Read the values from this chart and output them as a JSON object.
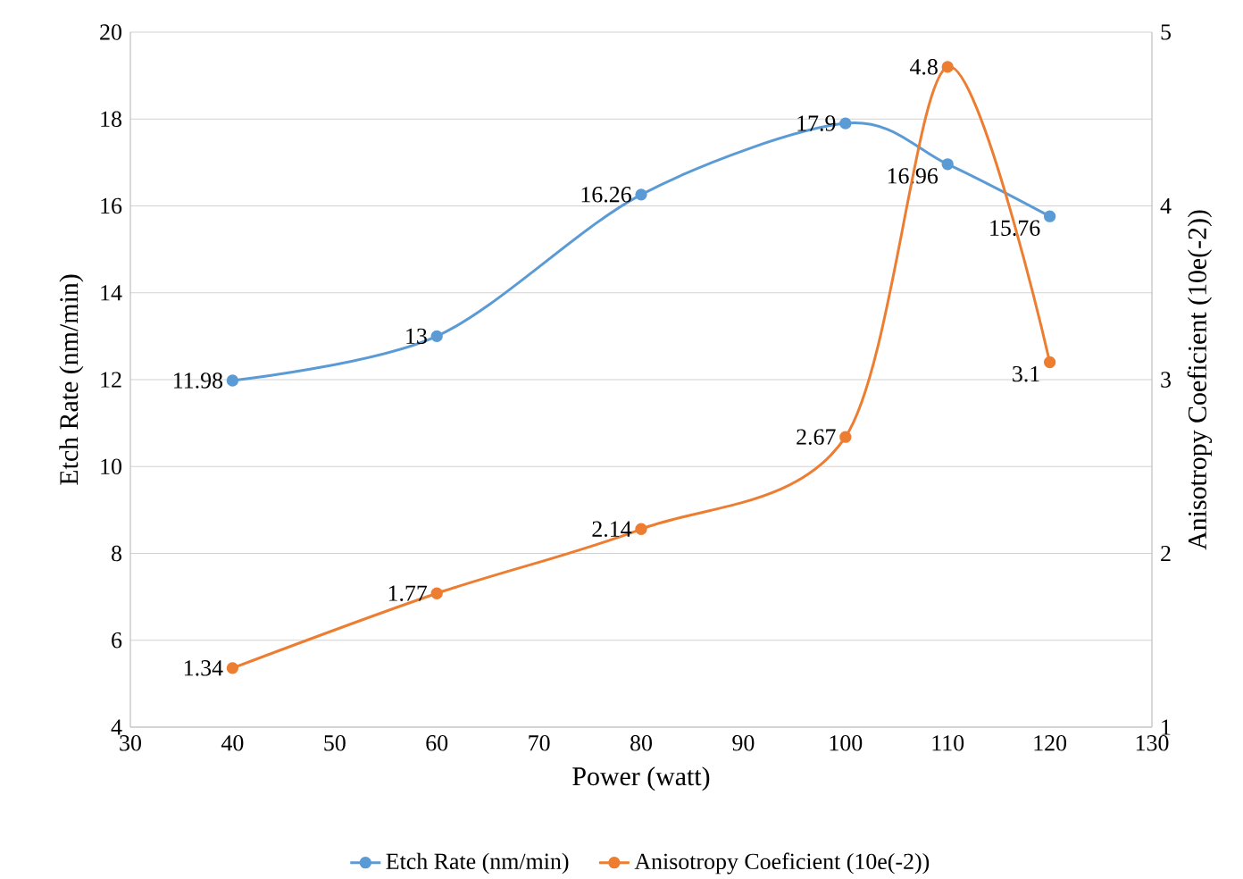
{
  "chart_data": {
    "type": "line",
    "xlabel": "Power (watt)",
    "ylabel": "Etch Rate (nm/min)",
    "y2label": "Anisotropy Coeficient (10e(-2))",
    "x": [
      40,
      60,
      80,
      100,
      110,
      120
    ],
    "series": [
      {
        "name": "Etch Rate (nm/min)",
        "color": "#5b9bd5",
        "values": [
          11.98,
          13,
          16.26,
          17.9,
          16.96,
          15.76
        ]
      },
      {
        "name": "Anisotropy Coeficient (10e(-2))",
        "color": "#ed7d31",
        "values": [
          1.34,
          1.77,
          2.14,
          2.67,
          4.8,
          3.1
        ],
        "axis": "y2"
      }
    ],
    "xlim": [
      30,
      130
    ],
    "xticks": [
      30,
      40,
      50,
      60,
      70,
      80,
      90,
      100,
      110,
      120,
      130
    ],
    "ylim": [
      4,
      20
    ],
    "yticks": [
      4,
      6,
      8,
      10,
      12,
      14,
      16,
      18,
      20
    ],
    "y2lim": [
      1,
      5
    ],
    "y2ticks": [
      1,
      2,
      3,
      4,
      5
    ],
    "grid": "y",
    "legend": "bottom",
    "marker": "circle",
    "line_style": "solid",
    "data_labels": true
  }
}
